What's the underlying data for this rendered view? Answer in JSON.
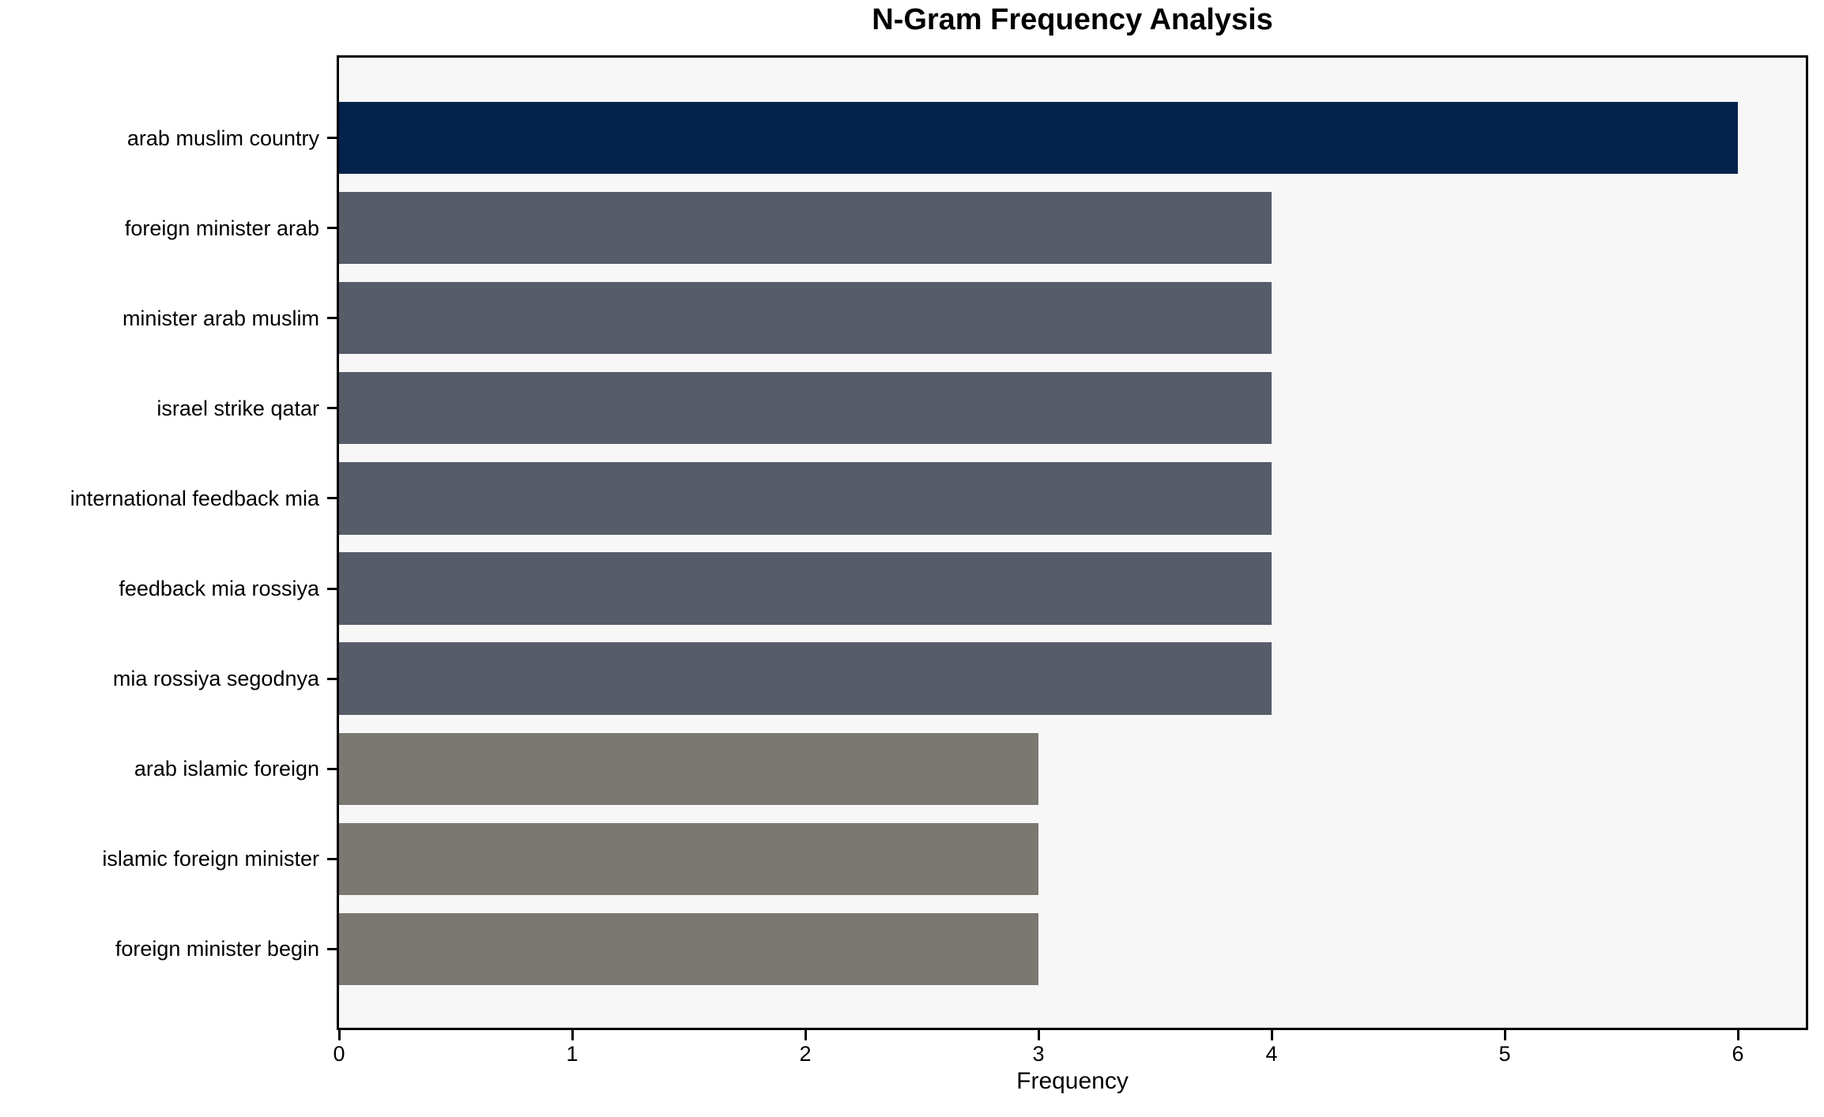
{
  "title": "N-Gram Frequency Analysis",
  "chart_data": {
    "type": "bar",
    "orientation": "horizontal",
    "title": "N-Gram Frequency Analysis",
    "xlabel": "Frequency",
    "ylabel": "",
    "categories": [
      "arab muslim country",
      "foreign minister arab",
      "minister arab muslim",
      "israel strike qatar",
      "international feedback mia",
      "feedback mia rossiya",
      "mia rossiya segodnya",
      "arab islamic foreign",
      "islamic foreign minister",
      "foreign minister begin"
    ],
    "values": [
      6,
      4,
      4,
      4,
      4,
      4,
      4,
      3,
      3,
      3
    ],
    "bar_colors": [
      "#03234d",
      "#575c69",
      "#575c69",
      "#575c69",
      "#575c69",
      "#575c69",
      "#575c69",
      "#7b7872",
      "#7b7872",
      "#7b7872"
    ],
    "xticks": [
      0,
      1,
      2,
      3,
      4,
      5,
      6
    ],
    "xlim": [
      0,
      6.3
    ],
    "grid": false,
    "legend": false,
    "plot_background": "#f7f7f7",
    "spine_color": "#000000"
  }
}
